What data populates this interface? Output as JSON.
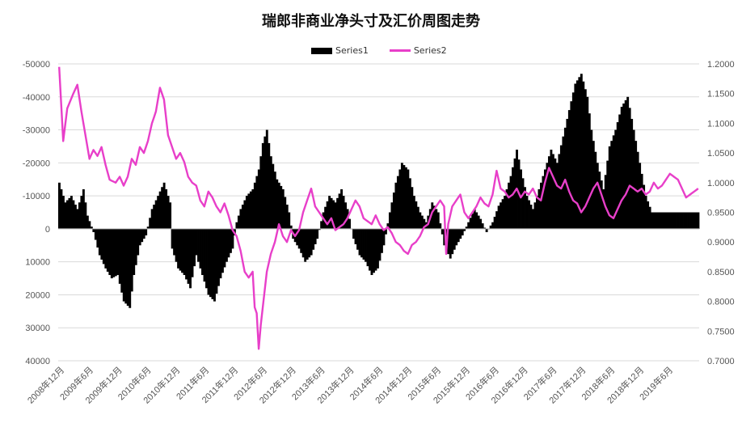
{
  "chart_data": {
    "type": "bar",
    "title": "瑞郎非商业净头寸及汇价周图走势",
    "series": [
      {
        "name": "Series1",
        "kind": "bar",
        "axis": "left"
      },
      {
        "name": "Series2",
        "kind": "line",
        "axis": "right",
        "color": "#e83fc9"
      }
    ],
    "x_tick_labels": [
      "2008年12月",
      "2009年6月",
      "2009年12月",
      "2010年6月",
      "2010年12月",
      "2011年6月",
      "2011年12月",
      "2012年6月",
      "2012年12月",
      "2013年6月",
      "2013年12月",
      "2014年6月",
      "2014年12月",
      "2015年6月",
      "2015年12月",
      "2016年6月",
      "2016年12月",
      "2017年6月",
      "2017年12月",
      "2018年6月",
      "2018年12月",
      "2019年6月"
    ],
    "left_axis": {
      "ticks": [
        "-50000",
        "-40000",
        "-30000",
        "-20000",
        "-10000",
        "0",
        "10000",
        "20000",
        "30000",
        "40000"
      ],
      "ylim": [
        -50000,
        40000
      ],
      "inverted": true
    },
    "right_axis": {
      "ticks": [
        "1.2000",
        "1.1500",
        "1.1000",
        "1.0500",
        "1.0000",
        "0.9500",
        "0.9000",
        "0.8500",
        "0.8000",
        "0.7500",
        "0.7000"
      ],
      "ylim": [
        0.7,
        1.2
      ]
    },
    "series1_keypoints": [
      [
        0,
        -14000
      ],
      [
        3,
        -8000
      ],
      [
        6,
        -10000
      ],
      [
        9,
        -6000
      ],
      [
        12,
        -12000
      ],
      [
        14,
        -4000
      ],
      [
        17,
        1000
      ],
      [
        20,
        8000
      ],
      [
        23,
        12000
      ],
      [
        26,
        15000
      ],
      [
        29,
        14000
      ],
      [
        32,
        22000
      ],
      [
        35,
        24000
      ],
      [
        37,
        14000
      ],
      [
        40,
        5000
      ],
      [
        43,
        2000
      ],
      [
        46,
        -6000
      ],
      [
        49,
        -10000
      ],
      [
        52,
        -14000
      ],
      [
        55,
        -8000
      ],
      [
        56,
        6000
      ],
      [
        59,
        12000
      ],
      [
        62,
        14000
      ],
      [
        65,
        18000
      ],
      [
        68,
        8000
      ],
      [
        71,
        14000
      ],
      [
        74,
        20000
      ],
      [
        77,
        22000
      ],
      [
        80,
        15000
      ],
      [
        83,
        10000
      ],
      [
        86,
        6000
      ],
      [
        88,
        -2000
      ],
      [
        90,
        -6000
      ],
      [
        93,
        -10000
      ],
      [
        96,
        -12000
      ],
      [
        99,
        -18000
      ],
      [
        101,
        -26000
      ],
      [
        103,
        -30000
      ],
      [
        105,
        -22000
      ],
      [
        108,
        -15000
      ],
      [
        111,
        -12000
      ],
      [
        114,
        -5000
      ],
      [
        116,
        3000
      ],
      [
        119,
        6000
      ],
      [
        122,
        10000
      ],
      [
        125,
        8000
      ],
      [
        128,
        3000
      ],
      [
        131,
        -5000
      ],
      [
        134,
        -10000
      ],
      [
        137,
        -8000
      ],
      [
        140,
        -12000
      ],
      [
        143,
        -6000
      ],
      [
        146,
        3000
      ],
      [
        149,
        8000
      ],
      [
        152,
        10000
      ],
      [
        155,
        14000
      ],
      [
        158,
        12000
      ],
      [
        161,
        5000
      ],
      [
        164,
        -5000
      ],
      [
        167,
        -14000
      ],
      [
        170,
        -20000
      ],
      [
        173,
        -18000
      ],
      [
        176,
        -10000
      ],
      [
        179,
        -5000
      ],
      [
        182,
        -2000
      ],
      [
        185,
        -8000
      ],
      [
        188,
        -5000
      ],
      [
        191,
        5000
      ],
      [
        194,
        9000
      ],
      [
        197,
        5000
      ],
      [
        200,
        2000
      ],
      [
        203,
        -2000
      ],
      [
        206,
        -6000
      ],
      [
        209,
        -3000
      ],
      [
        212,
        1000
      ],
      [
        215,
        -2000
      ],
      [
        218,
        -7000
      ],
      [
        221,
        -10000
      ],
      [
        224,
        -16000
      ],
      [
        227,
        -24000
      ],
      [
        229,
        -18000
      ],
      [
        232,
        -10000
      ],
      [
        235,
        -6000
      ],
      [
        238,
        -12000
      ],
      [
        241,
        -18000
      ],
      [
        244,
        -24000
      ],
      [
        247,
        -20000
      ],
      [
        250,
        -28000
      ],
      [
        253,
        -36000
      ],
      [
        256,
        -44000
      ],
      [
        259,
        -47000
      ],
      [
        262,
        -40000
      ],
      [
        264,
        -30000
      ],
      [
        267,
        -20000
      ],
      [
        270,
        -12000
      ],
      [
        273,
        -25000
      ],
      [
        276,
        -30000
      ],
      [
        279,
        -37000
      ],
      [
        282,
        -40000
      ],
      [
        285,
        -30000
      ],
      [
        288,
        -20000
      ],
      [
        291,
        -10000
      ],
      [
        294,
        -5000
      ]
    ],
    "series2_keypoints": [
      [
        0,
        1.195
      ],
      [
        2,
        1.07
      ],
      [
        4,
        1.125
      ],
      [
        7,
        1.15
      ],
      [
        9,
        1.165
      ],
      [
        11,
        1.12
      ],
      [
        13,
        1.08
      ],
      [
        15,
        1.04
      ],
      [
        17,
        1.055
      ],
      [
        19,
        1.045
      ],
      [
        21,
        1.06
      ],
      [
        23,
        1.03
      ],
      [
        25,
        1.005
      ],
      [
        28,
        1.0
      ],
      [
        30,
        1.01
      ],
      [
        32,
        0.995
      ],
      [
        34,
        1.01
      ],
      [
        36,
        1.04
      ],
      [
        38,
        1.03
      ],
      [
        40,
        1.06
      ],
      [
        42,
        1.05
      ],
      [
        44,
        1.07
      ],
      [
        46,
        1.1
      ],
      [
        48,
        1.12
      ],
      [
        50,
        1.16
      ],
      [
        52,
        1.14
      ],
      [
        54,
        1.08
      ],
      [
        56,
        1.06
      ],
      [
        58,
        1.04
      ],
      [
        60,
        1.05
      ],
      [
        62,
        1.035
      ],
      [
        64,
        1.01
      ],
      [
        66,
        1.0
      ],
      [
        68,
        0.995
      ],
      [
        70,
        0.97
      ],
      [
        72,
        0.96
      ],
      [
        74,
        0.985
      ],
      [
        76,
        0.975
      ],
      [
        78,
        0.96
      ],
      [
        80,
        0.95
      ],
      [
        82,
        0.965
      ],
      [
        84,
        0.945
      ],
      [
        86,
        0.92
      ],
      [
        88,
        0.91
      ],
      [
        90,
        0.885
      ],
      [
        92,
        0.85
      ],
      [
        94,
        0.84
      ],
      [
        96,
        0.85
      ],
      [
        97,
        0.79
      ],
      [
        98,
        0.78
      ],
      [
        99,
        0.72
      ],
      [
        100,
        0.76
      ],
      [
        101,
        0.79
      ],
      [
        103,
        0.85
      ],
      [
        105,
        0.88
      ],
      [
        107,
        0.9
      ],
      [
        109,
        0.93
      ],
      [
        111,
        0.91
      ],
      [
        113,
        0.9
      ],
      [
        115,
        0.92
      ],
      [
        117,
        0.91
      ],
      [
        119,
        0.92
      ],
      [
        121,
        0.95
      ],
      [
        123,
        0.97
      ],
      [
        125,
        0.99
      ],
      [
        127,
        0.96
      ],
      [
        129,
        0.95
      ],
      [
        131,
        0.94
      ],
      [
        133,
        0.93
      ],
      [
        135,
        0.94
      ],
      [
        137,
        0.92
      ],
      [
        139,
        0.925
      ],
      [
        141,
        0.93
      ],
      [
        143,
        0.94
      ],
      [
        145,
        0.955
      ],
      [
        147,
        0.97
      ],
      [
        149,
        0.96
      ],
      [
        151,
        0.94
      ],
      [
        153,
        0.935
      ],
      [
        155,
        0.93
      ],
      [
        157,
        0.945
      ],
      [
        159,
        0.93
      ],
      [
        161,
        0.92
      ],
      [
        163,
        0.925
      ],
      [
        165,
        0.915
      ],
      [
        167,
        0.9
      ],
      [
        169,
        0.895
      ],
      [
        171,
        0.885
      ],
      [
        173,
        0.88
      ],
      [
        175,
        0.895
      ],
      [
        177,
        0.9
      ],
      [
        179,
        0.91
      ],
      [
        181,
        0.925
      ],
      [
        183,
        0.93
      ],
      [
        185,
        0.95
      ],
      [
        187,
        0.96
      ],
      [
        189,
        0.97
      ],
      [
        191,
        0.96
      ],
      [
        192,
        0.88
      ],
      [
        193,
        0.93
      ],
      [
        195,
        0.96
      ],
      [
        197,
        0.97
      ],
      [
        199,
        0.98
      ],
      [
        201,
        0.95
      ],
      [
        203,
        0.94
      ],
      [
        205,
        0.95
      ],
      [
        207,
        0.96
      ],
      [
        209,
        0.975
      ],
      [
        211,
        0.965
      ],
      [
        213,
        0.96
      ],
      [
        215,
        0.98
      ],
      [
        217,
        1.02
      ],
      [
        219,
        0.99
      ],
      [
        221,
        0.985
      ],
      [
        223,
        0.975
      ],
      [
        225,
        0.98
      ],
      [
        227,
        0.99
      ],
      [
        229,
        0.975
      ],
      [
        231,
        0.985
      ],
      [
        233,
        0.98
      ],
      [
        235,
        0.99
      ],
      [
        237,
        0.975
      ],
      [
        239,
        0.97
      ],
      [
        241,
        1.0
      ],
      [
        243,
        1.025
      ],
      [
        245,
        1.01
      ],
      [
        247,
        0.995
      ],
      [
        249,
        0.99
      ],
      [
        251,
        1.005
      ],
      [
        253,
        0.985
      ],
      [
        255,
        0.97
      ],
      [
        257,
        0.965
      ],
      [
        259,
        0.95
      ],
      [
        261,
        0.96
      ],
      [
        263,
        0.975
      ],
      [
        265,
        0.99
      ],
      [
        267,
        1.0
      ],
      [
        269,
        0.98
      ],
      [
        271,
        0.96
      ],
      [
        273,
        0.945
      ],
      [
        275,
        0.94
      ],
      [
        277,
        0.955
      ],
      [
        279,
        0.97
      ],
      [
        281,
        0.98
      ],
      [
        283,
        0.995
      ],
      [
        285,
        0.99
      ],
      [
        287,
        0.985
      ],
      [
        289,
        0.99
      ],
      [
        291,
        0.98
      ],
      [
        293,
        0.985
      ],
      [
        295,
        1.0
      ],
      [
        297,
        0.99
      ],
      [
        299,
        0.995
      ],
      [
        301,
        1.005
      ],
      [
        303,
        1.015
      ],
      [
        305,
        1.01
      ],
      [
        307,
        1.005
      ],
      [
        309,
        0.99
      ],
      [
        311,
        0.975
      ],
      [
        313,
        0.98
      ],
      [
        315,
        0.985
      ],
      [
        317,
        0.99
      ]
    ],
    "grid": true,
    "legend_position": "top"
  }
}
